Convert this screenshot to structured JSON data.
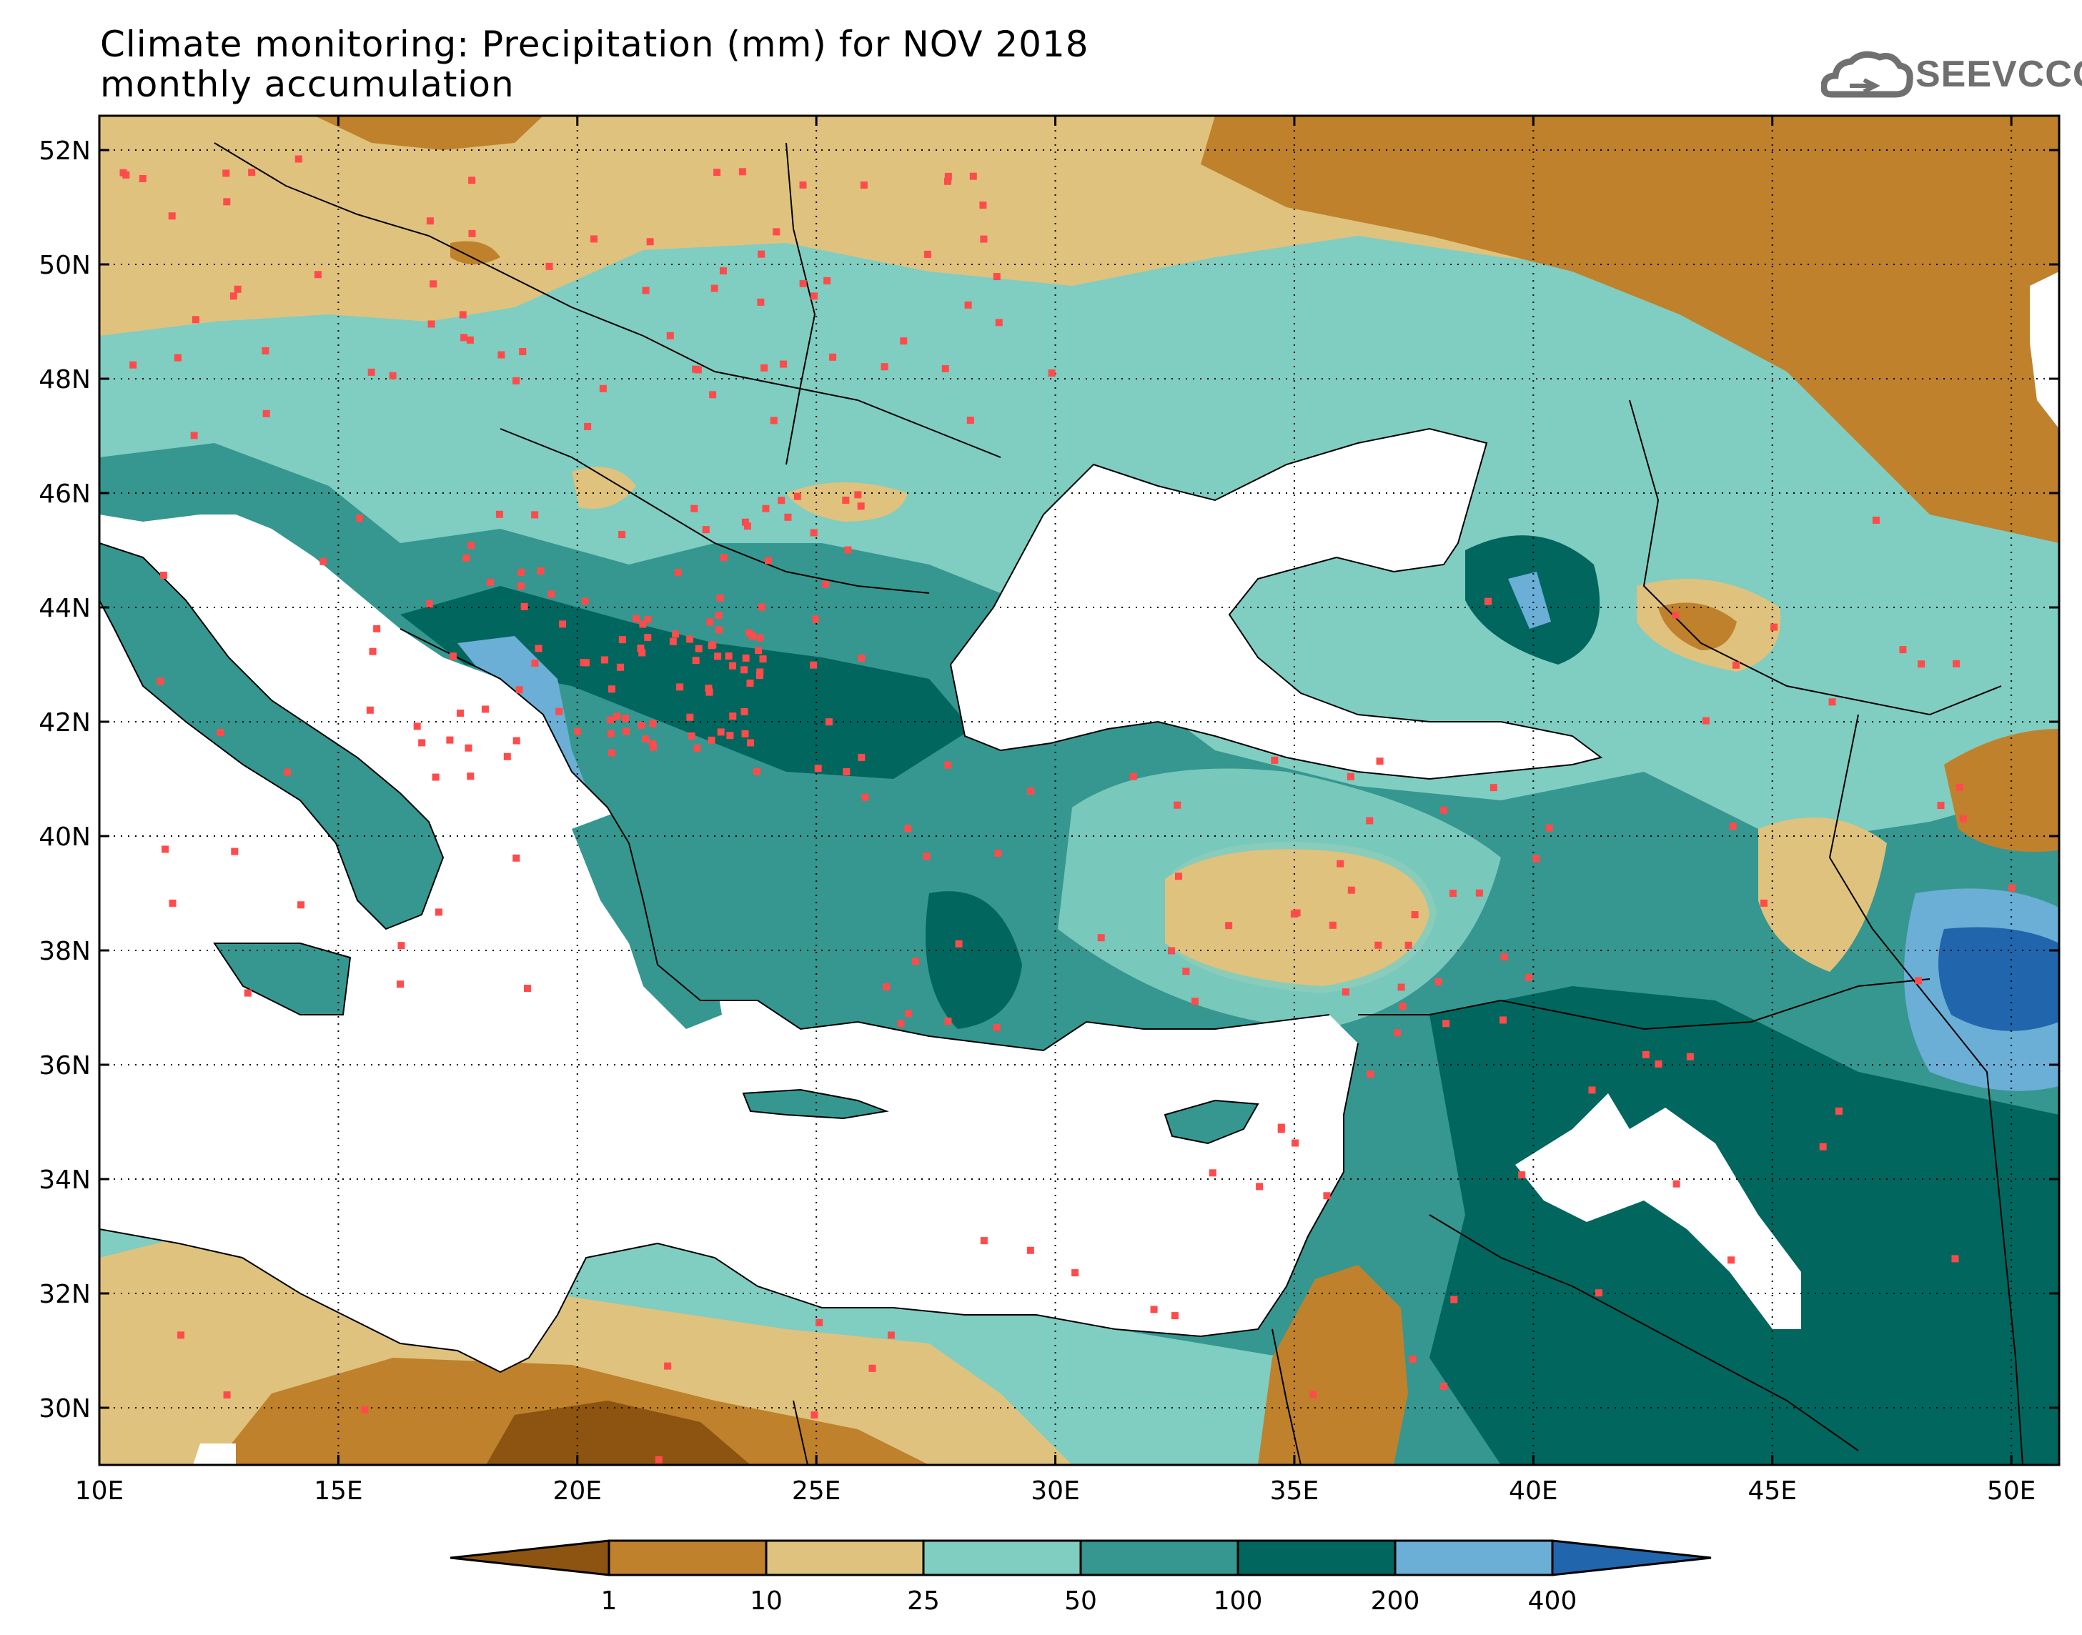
{
  "title": {
    "line1": "Climate monitoring: Precipitation (mm) for NOV 2018",
    "line2": "monthly accumulation"
  },
  "logo": {
    "text": "SEEVCCC",
    "icon": "cloud-icon",
    "color": "#707070"
  },
  "map": {
    "projection": "lat-lon",
    "lon_range": [
      10,
      51
    ],
    "lat_range": [
      29,
      52.6
    ],
    "lon_ticks": [
      "10E",
      "15E",
      "20E",
      "25E",
      "30E",
      "35E",
      "40E",
      "45E",
      "50E"
    ],
    "lat_ticks": [
      "30N",
      "32N",
      "34N",
      "36N",
      "38N",
      "40N",
      "42N",
      "44N",
      "46N",
      "48N",
      "50N",
      "52N"
    ],
    "grid": "dotted",
    "station_marker_color": "#ff4b4b",
    "sea_color": "#ffffff"
  },
  "colorbar": {
    "classes": [
      {
        "color": "#8c5410"
      },
      {
        "color": "#bf812c"
      },
      {
        "color": "#dfc27d"
      },
      {
        "color": "#80cdc1"
      },
      {
        "color": "#35978f"
      },
      {
        "color": "#01665e"
      },
      {
        "color": "#6baed6"
      },
      {
        "color": "#2166ac"
      }
    ],
    "labels": [
      "1",
      "10",
      "25",
      "50",
      "100",
      "200",
      "400"
    ]
  }
}
